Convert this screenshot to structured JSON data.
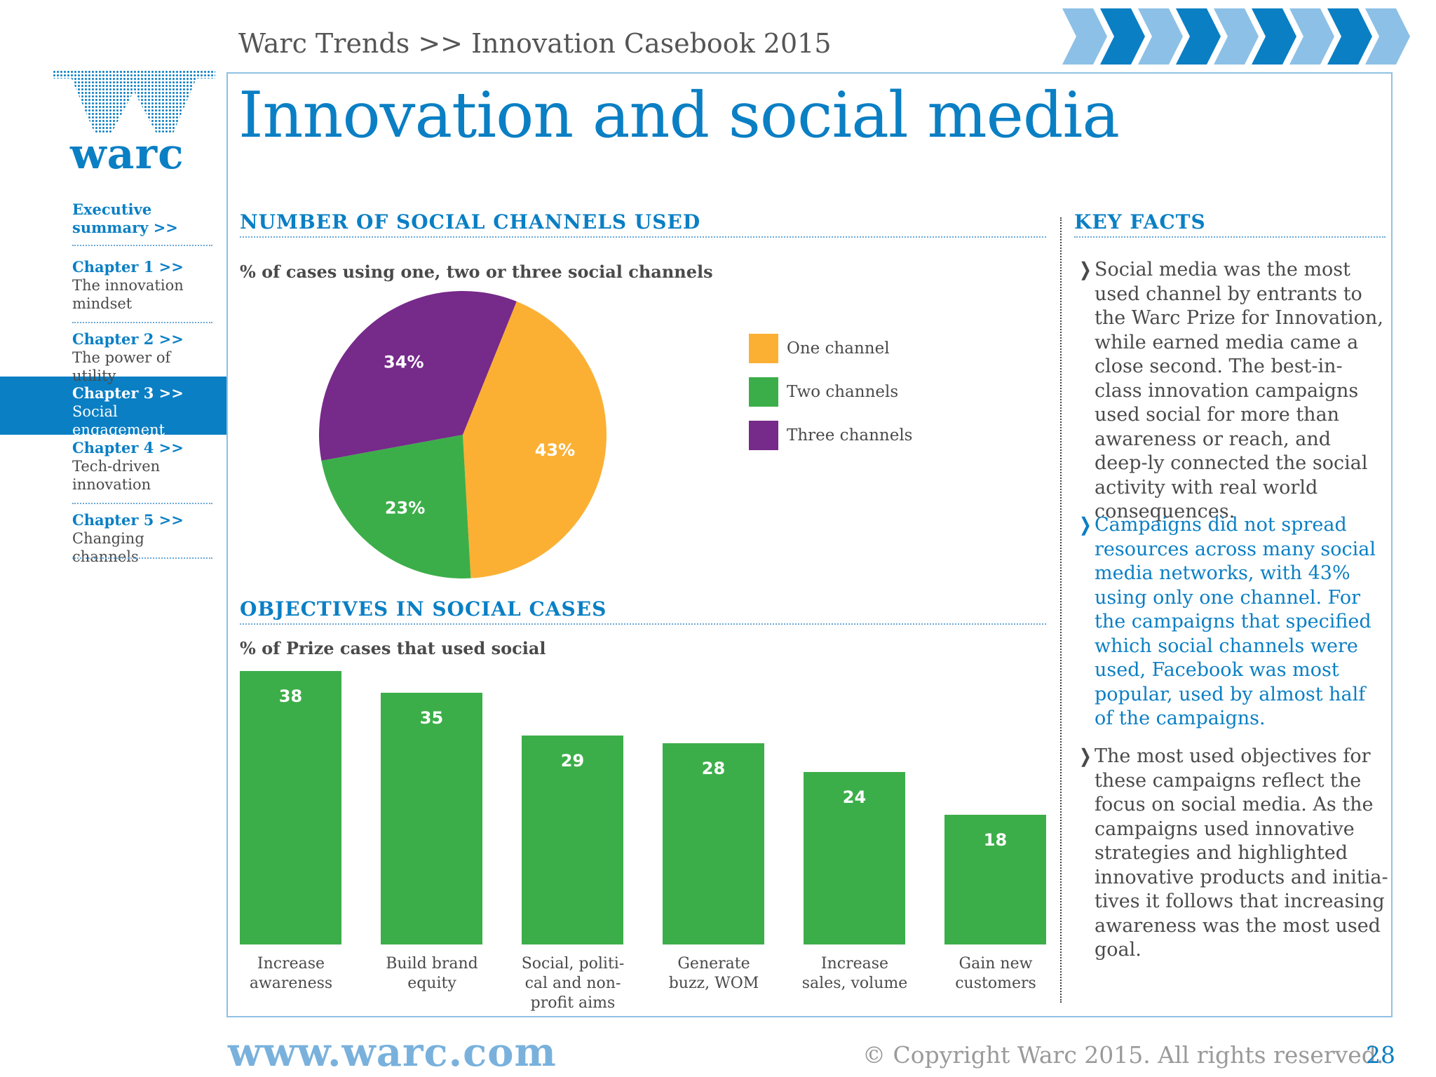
{
  "header": {
    "running_head": "Warc Trends >> Innovation Casebook 2015",
    "logo_text": "warc"
  },
  "title": "Innovation and social media",
  "sidebar": {
    "items": [
      {
        "head": "Executive summary >>",
        "sub": ""
      },
      {
        "head": "Chapter 1 >>",
        "sub": "The innovation mindset"
      },
      {
        "head": "Chapter 2 >>",
        "sub": "The power of utility"
      },
      {
        "head": "Chapter 3 >>",
        "sub": "Social engagement",
        "active": true
      },
      {
        "head": "Chapter 4 >>",
        "sub": "Tech-driven innovation"
      },
      {
        "head": "Chapter 5 >>",
        "sub": "Changing channels"
      }
    ]
  },
  "pie_section": {
    "heading": "NUMBER OF SOCIAL CHANNELS USED",
    "subtitle": "% of cases using one, two or three social channels"
  },
  "bar_section": {
    "heading": "OBJECTIVES IN SOCIAL CASES",
    "subtitle": "% of Prize cases that used social"
  },
  "chart_data": [
    {
      "type": "pie",
      "title": "NUMBER OF SOCIAL CHANNELS USED",
      "subtitle": "% of cases using one, two or three social channels",
      "slices": [
        {
          "name": "One channel",
          "value": 43,
          "label": "43%",
          "color": "#fbb034"
        },
        {
          "name": "Two channels",
          "value": 23,
          "label": "23%",
          "color": "#3cae49"
        },
        {
          "name": "Three channels",
          "value": 34,
          "label": "34%",
          "color": "#762a8a"
        }
      ],
      "legend_position": "right"
    },
    {
      "type": "bar",
      "title": "OBJECTIVES IN SOCIAL CASES",
      "subtitle": "% of Prize cases that used social",
      "categories": [
        "Increase awareness",
        "Build brand equity",
        "Social, politi-cal and non-profit aims",
        "Generate buzz, WOM",
        "Increase sales, volume",
        "Gain new customers"
      ],
      "category_lines": [
        [
          "Increase",
          "awareness"
        ],
        [
          "Build brand",
          "equity"
        ],
        [
          "Social, politi-",
          "cal and non-",
          "profit aims"
        ],
        [
          "Generate",
          "buzz, WOM"
        ],
        [
          "Increase",
          "sales, volume"
        ],
        [
          "Gain new",
          "customers"
        ]
      ],
      "values": [
        38,
        35,
        29,
        28,
        24,
        18
      ],
      "ylim": [
        0,
        38
      ],
      "color": "#3cae49",
      "grid": false
    }
  ],
  "key_facts": {
    "heading": "KEY FACTS",
    "items": [
      {
        "text": "Social media was the most used channel by entrants to the Warc Prize for Innovation, while earned media came a close second. The best-in-class innovation campaigns used social for more than awareness or reach, and deep-ly connected the social activity with real world consequences.",
        "highlight": false
      },
      {
        "text": "Campaigns did not spread resources across many social media networks, with 43% using only one channel. For the campaigns that specified which social channels were used, Facebook was most popular, used by almost half of the campaigns.",
        "highlight": true
      },
      {
        "text": "The most used objectives for these campaigns reflect the focus on social media. As the campaigns used innovative strategies and highlighted innovative products and initia-tives it follows that increasing awareness was the most used goal.",
        "highlight": false
      }
    ]
  },
  "footer": {
    "url": "www.warc.com",
    "copyright": "© Copyright Warc 2015. All rights reserved.",
    "page_number": "28"
  },
  "colors": {
    "brand_blue": "#0a7fc4",
    "light_blue": "#79b1dc",
    "frame_blue": "#8fc1e3"
  }
}
